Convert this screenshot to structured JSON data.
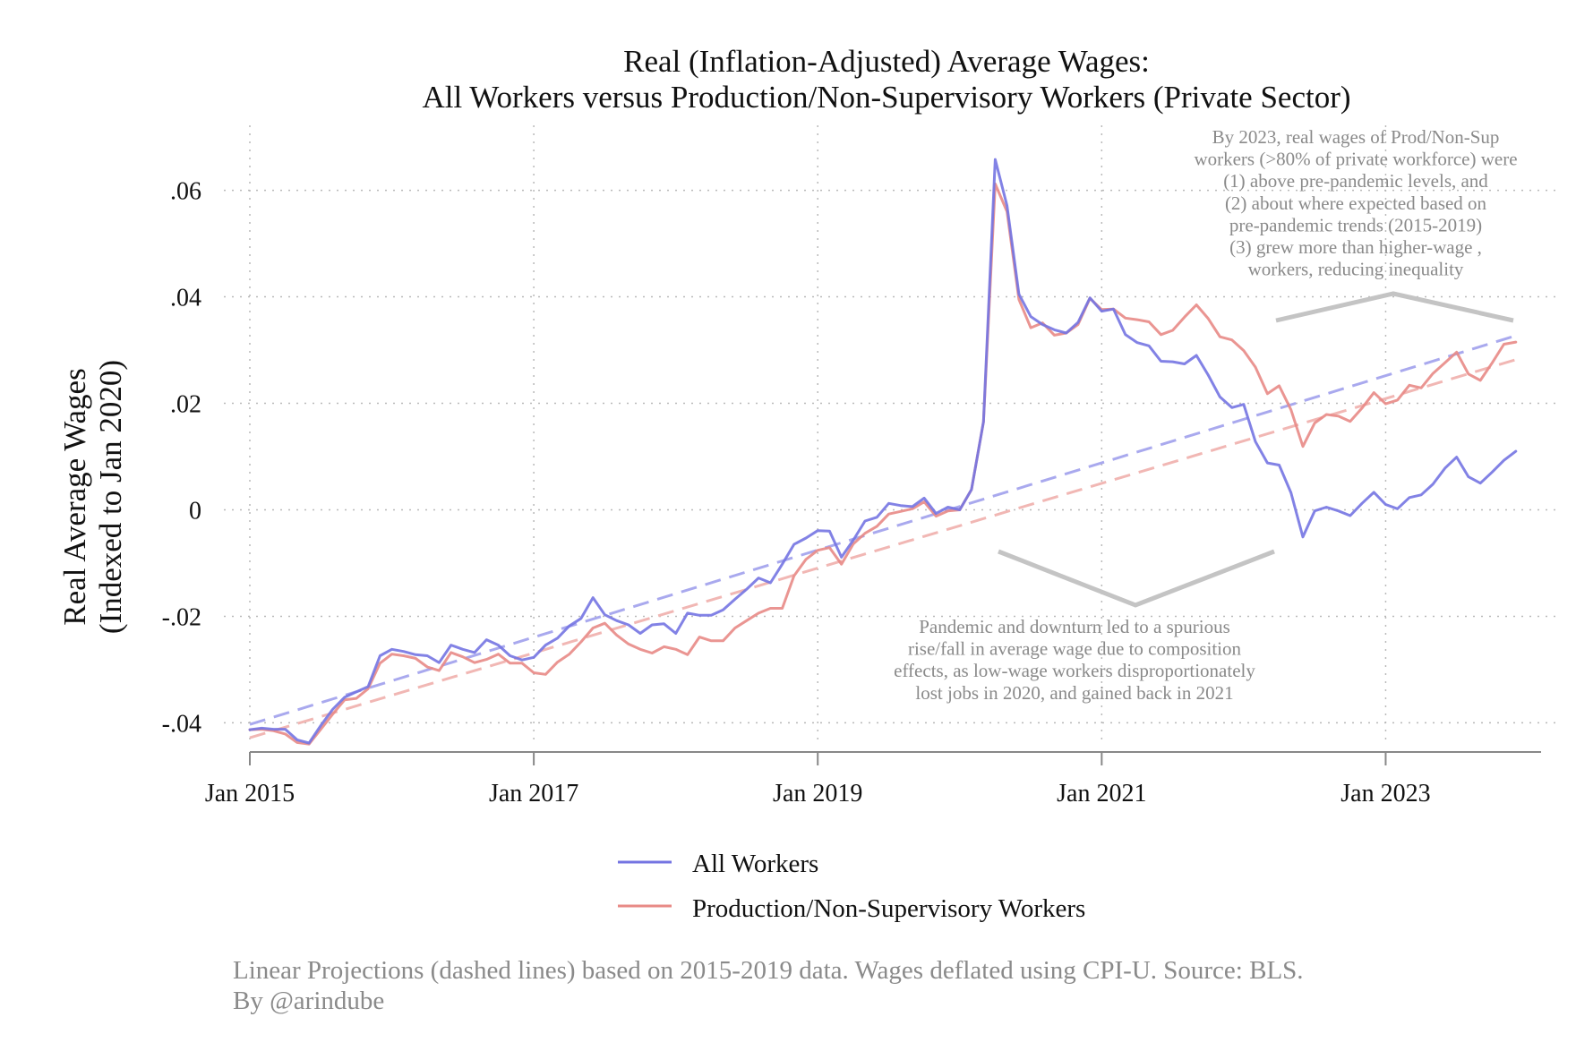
{
  "chart_data": {
    "type": "line",
    "title": "Real (Inflation-Adjusted) Average Wages:",
    "subtitle": "All Workers versus Production/Non-Supervisory Workers (Private Sector)",
    "ylabel": "Real Average Wages",
    "ylabel2": "(Indexed to Jan 2020)",
    "xlabel": "",
    "xlim": [
      2015.0,
      2024.0
    ],
    "ylim": [
      -0.048,
      0.068
    ],
    "grid": true,
    "x_ticks": [
      {
        "value": 2015,
        "label": "Jan 2015"
      },
      {
        "value": 2017,
        "label": "Jan 2017"
      },
      {
        "value": 2019,
        "label": "Jan 2019"
      },
      {
        "value": 2021,
        "label": "Jan 2021"
      },
      {
        "value": 2023,
        "label": "Jan 2023"
      }
    ],
    "y_ticks": [
      {
        "value": 0.06,
        "label": ".06"
      },
      {
        "value": 0.04,
        "label": ".04"
      },
      {
        "value": 0.02,
        "label": ".02"
      },
      {
        "value": 0,
        "label": "0"
      },
      {
        "value": -0.02,
        "label": "-.02"
      },
      {
        "value": -0.04,
        "label": "-.04"
      }
    ],
    "series": [
      {
        "name": "All Workers",
        "color": "#7474e2",
        "points": [
          [
            2015.0,
            -0.0413
          ],
          [
            2015.083,
            -0.041
          ],
          [
            2015.167,
            -0.0412
          ],
          [
            2015.25,
            -0.0412
          ],
          [
            2015.333,
            -0.0432
          ],
          [
            2015.417,
            -0.0438
          ],
          [
            2015.5,
            -0.0405
          ],
          [
            2015.583,
            -0.0375
          ],
          [
            2015.667,
            -0.0352
          ],
          [
            2015.75,
            -0.0342
          ],
          [
            2015.833,
            -0.0332
          ],
          [
            2015.917,
            -0.0274
          ],
          [
            2016.0,
            -0.0262
          ],
          [
            2016.083,
            -0.0266
          ],
          [
            2016.167,
            -0.0272
          ],
          [
            2016.25,
            -0.0274
          ],
          [
            2016.333,
            -0.0287
          ],
          [
            2016.417,
            -0.0254
          ],
          [
            2016.5,
            -0.0262
          ],
          [
            2016.583,
            -0.0268
          ],
          [
            2016.667,
            -0.0244
          ],
          [
            2016.75,
            -0.0254
          ],
          [
            2016.833,
            -0.0274
          ],
          [
            2016.917,
            -0.0282
          ],
          [
            2017.0,
            -0.0277
          ],
          [
            2017.083,
            -0.0254
          ],
          [
            2017.167,
            -0.0241
          ],
          [
            2017.25,
            -0.0218
          ],
          [
            2017.333,
            -0.0204
          ],
          [
            2017.417,
            -0.0165
          ],
          [
            2017.5,
            -0.0197
          ],
          [
            2017.583,
            -0.0208
          ],
          [
            2017.667,
            -0.0216
          ],
          [
            2017.75,
            -0.0232
          ],
          [
            2017.833,
            -0.0216
          ],
          [
            2017.917,
            -0.0214
          ],
          [
            2018.0,
            -0.0232
          ],
          [
            2018.083,
            -0.0194
          ],
          [
            2018.167,
            -0.0198
          ],
          [
            2018.25,
            -0.0198
          ],
          [
            2018.333,
            -0.0188
          ],
          [
            2018.417,
            -0.0168
          ],
          [
            2018.5,
            -0.0149
          ],
          [
            2018.583,
            -0.0128
          ],
          [
            2018.667,
            -0.0137
          ],
          [
            2018.75,
            -0.0102
          ],
          [
            2018.833,
            -0.0065
          ],
          [
            2018.917,
            -0.0053
          ],
          [
            2019.0,
            -0.0039
          ],
          [
            2019.083,
            -0.004
          ],
          [
            2019.167,
            -0.0089
          ],
          [
            2019.25,
            -0.0057
          ],
          [
            2019.333,
            -0.0021
          ],
          [
            2019.417,
            -0.0014
          ],
          [
            2019.5,
            0.0012
          ],
          [
            2019.583,
            0.0008
          ],
          [
            2019.667,
            0.0006
          ],
          [
            2019.75,
            0.0022
          ],
          [
            2019.833,
            -0.0007
          ],
          [
            2019.917,
            0.0005
          ],
          [
            2020.0,
            0.0
          ],
          [
            2020.083,
            0.0038
          ],
          [
            2020.167,
            0.0165
          ],
          [
            2020.25,
            0.0658
          ],
          [
            2020.333,
            0.0571
          ],
          [
            2020.417,
            0.0405
          ],
          [
            2020.5,
            0.0363
          ],
          [
            2020.583,
            0.0348
          ],
          [
            2020.667,
            0.0338
          ],
          [
            2020.75,
            0.0332
          ],
          [
            2020.833,
            0.0352
          ],
          [
            2020.917,
            0.0398
          ],
          [
            2021.0,
            0.0373
          ],
          [
            2021.083,
            0.0377
          ],
          [
            2021.167,
            0.0329
          ],
          [
            2021.25,
            0.0314
          ],
          [
            2021.333,
            0.0308
          ],
          [
            2021.417,
            0.0279
          ],
          [
            2021.5,
            0.0278
          ],
          [
            2021.583,
            0.0274
          ],
          [
            2021.667,
            0.029
          ],
          [
            2021.75,
            0.0253
          ],
          [
            2021.833,
            0.0212
          ],
          [
            2021.917,
            0.0192
          ],
          [
            2022.0,
            0.0198
          ],
          [
            2022.083,
            0.0128
          ],
          [
            2022.167,
            0.0088
          ],
          [
            2022.25,
            0.0084
          ],
          [
            2022.333,
            0.0032
          ],
          [
            2022.417,
            -0.0051
          ],
          [
            2022.5,
            -0.0002
          ],
          [
            2022.583,
            0.0005
          ],
          [
            2022.667,
            -0.0002
          ],
          [
            2022.75,
            -0.0011
          ],
          [
            2022.833,
            0.0012
          ],
          [
            2022.917,
            0.0033
          ],
          [
            2023.0,
            0.001
          ],
          [
            2023.083,
            0.0002
          ],
          [
            2023.167,
            0.0023
          ],
          [
            2023.25,
            0.0028
          ],
          [
            2023.333,
            0.0048
          ],
          [
            2023.417,
            0.0078
          ],
          [
            2023.5,
            0.0099
          ],
          [
            2023.583,
            0.0062
          ],
          [
            2023.667,
            0.005
          ],
          [
            2023.75,
            0.0071
          ],
          [
            2023.833,
            0.0093
          ],
          [
            2023.917,
            0.011
          ]
        ]
      },
      {
        "name": "Production/Non-Supervisory Workers",
        "color": "#e88a86",
        "points": [
          [
            2015.0,
            -0.0413
          ],
          [
            2015.083,
            -0.0412
          ],
          [
            2015.167,
            -0.0415
          ],
          [
            2015.25,
            -0.0421
          ],
          [
            2015.333,
            -0.0437
          ],
          [
            2015.417,
            -0.044
          ],
          [
            2015.5,
            -0.0412
          ],
          [
            2015.583,
            -0.0384
          ],
          [
            2015.667,
            -0.0357
          ],
          [
            2015.75,
            -0.0354
          ],
          [
            2015.833,
            -0.0336
          ],
          [
            2015.917,
            -0.0288
          ],
          [
            2016.0,
            -0.0271
          ],
          [
            2016.083,
            -0.0274
          ],
          [
            2016.167,
            -0.0279
          ],
          [
            2016.25,
            -0.0295
          ],
          [
            2016.333,
            -0.0302
          ],
          [
            2016.417,
            -0.0268
          ],
          [
            2016.5,
            -0.0276
          ],
          [
            2016.583,
            -0.0287
          ],
          [
            2016.667,
            -0.0281
          ],
          [
            2016.75,
            -0.0271
          ],
          [
            2016.833,
            -0.0288
          ],
          [
            2016.917,
            -0.0288
          ],
          [
            2017.0,
            -0.0306
          ],
          [
            2017.083,
            -0.0309
          ],
          [
            2017.167,
            -0.0286
          ],
          [
            2017.25,
            -0.0271
          ],
          [
            2017.333,
            -0.0248
          ],
          [
            2017.417,
            -0.0222
          ],
          [
            2017.5,
            -0.0213
          ],
          [
            2017.583,
            -0.0235
          ],
          [
            2017.667,
            -0.0252
          ],
          [
            2017.75,
            -0.0262
          ],
          [
            2017.833,
            -0.0269
          ],
          [
            2017.917,
            -0.0257
          ],
          [
            2018.0,
            -0.0262
          ],
          [
            2018.083,
            -0.0272
          ],
          [
            2018.167,
            -0.0239
          ],
          [
            2018.25,
            -0.0246
          ],
          [
            2018.333,
            -0.0246
          ],
          [
            2018.417,
            -0.0222
          ],
          [
            2018.5,
            -0.0208
          ],
          [
            2018.583,
            -0.0194
          ],
          [
            2018.667,
            -0.0185
          ],
          [
            2018.75,
            -0.0185
          ],
          [
            2018.833,
            -0.0124
          ],
          [
            2018.917,
            -0.0093
          ],
          [
            2019.0,
            -0.0076
          ],
          [
            2019.083,
            -0.0071
          ],
          [
            2019.167,
            -0.0102
          ],
          [
            2019.25,
            -0.0064
          ],
          [
            2019.333,
            -0.0044
          ],
          [
            2019.417,
            -0.0031
          ],
          [
            2019.5,
            -0.0008
          ],
          [
            2019.583,
            -0.0003
          ],
          [
            2019.667,
            0.0002
          ],
          [
            2019.75,
            0.0015
          ],
          [
            2019.833,
            -0.0012
          ],
          [
            2019.917,
            -0.0002
          ],
          [
            2020.0,
            0.0
          ],
          [
            2020.083,
            0.0038
          ],
          [
            2020.167,
            0.0165
          ],
          [
            2020.25,
            0.0612
          ],
          [
            2020.333,
            0.056
          ],
          [
            2020.417,
            0.0395
          ],
          [
            2020.5,
            0.0342
          ],
          [
            2020.583,
            0.0351
          ],
          [
            2020.667,
            0.0328
          ],
          [
            2020.75,
            0.0332
          ],
          [
            2020.833,
            0.0348
          ],
          [
            2020.917,
            0.0397
          ],
          [
            2021.0,
            0.0376
          ],
          [
            2021.083,
            0.0377
          ],
          [
            2021.167,
            0.036
          ],
          [
            2021.25,
            0.0357
          ],
          [
            2021.333,
            0.0353
          ],
          [
            2021.417,
            0.0329
          ],
          [
            2021.5,
            0.0337
          ],
          [
            2021.583,
            0.0362
          ],
          [
            2021.667,
            0.0385
          ],
          [
            2021.75,
            0.0359
          ],
          [
            2021.833,
            0.0325
          ],
          [
            2021.917,
            0.0319
          ],
          [
            2022.0,
            0.0299
          ],
          [
            2022.083,
            0.0268
          ],
          [
            2022.167,
            0.0218
          ],
          [
            2022.25,
            0.0233
          ],
          [
            2022.333,
            0.0188
          ],
          [
            2022.417,
            0.0119
          ],
          [
            2022.5,
            0.0163
          ],
          [
            2022.583,
            0.0179
          ],
          [
            2022.667,
            0.0176
          ],
          [
            2022.75,
            0.0166
          ],
          [
            2022.833,
            0.0191
          ],
          [
            2022.917,
            0.022
          ],
          [
            2023.0,
            0.0199
          ],
          [
            2023.083,
            0.0206
          ],
          [
            2023.167,
            0.0234
          ],
          [
            2023.25,
            0.0229
          ],
          [
            2023.333,
            0.0256
          ],
          [
            2023.417,
            0.0276
          ],
          [
            2023.5,
            0.0296
          ],
          [
            2023.583,
            0.0255
          ],
          [
            2023.667,
            0.0243
          ],
          [
            2023.75,
            0.0276
          ],
          [
            2023.833,
            0.0311
          ],
          [
            2023.917,
            0.0315
          ]
        ]
      }
    ],
    "projections": [
      {
        "series": "All Workers",
        "style": "dashed",
        "color": "#a9a9ee",
        "from": [
          2015.0,
          -0.0403
        ],
        "to": [
          2023.917,
          0.0327
        ]
      },
      {
        "series": "Production/Non-Supervisory Workers",
        "style": "dashed",
        "color": "#f1b7b4",
        "from": [
          2015.0,
          -0.0428
        ],
        "to": [
          2023.917,
          0.0282
        ]
      }
    ],
    "annotations": [
      {
        "lines": [
          "By 2023, real wages of Prod/Non-Sup",
          "workers (>80% of private workforce) were",
          "(1) above pre-pandemic levels, and",
          "(2) about where expected based on",
          "pre-pandemic trends (2015-2019)",
          "(3) grew more than higher-wage ,",
          "workers, reducing inequality"
        ]
      },
      {
        "lines": [
          "Pandemic and downturn led to a spurious",
          "rise/fall in average wage due to composition",
          "effects, as low-wage workers disproportionately",
          "lost jobs in 2020, and gained back in 2021"
        ]
      }
    ],
    "legend": {
      "placement": "bottom",
      "entries": [
        "All Workers",
        "Production/Non-Supervisory Workers"
      ]
    },
    "caption": [
      "Linear Projections (dashed lines) based on 2015-2019 data. Wages deflated using CPI-U. Source: BLS.",
      "By @arindube"
    ]
  }
}
